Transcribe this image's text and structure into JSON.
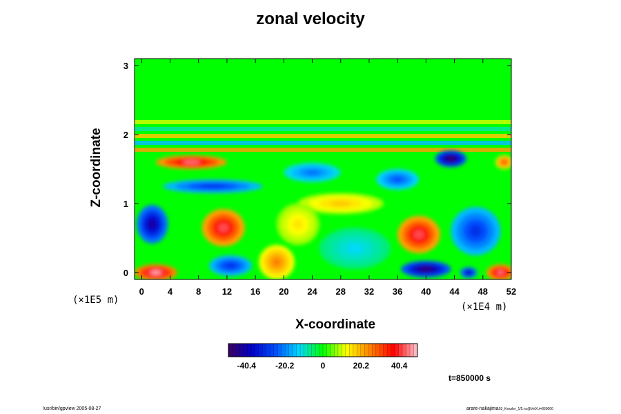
{
  "footer": {
    "left": "/usr/bin/gpview 2005-08-27",
    "right_user": "arare-nakajima",
    "right_file": "03_Kessler_1/5.nc@VelX,t=850000"
  },
  "time_label": "t=850000 s",
  "chart_data": {
    "type": "heatmap",
    "title": "zonal velocity",
    "xlabel": "X-coordinate",
    "ylabel": "Z-coordinate",
    "x_unit": "(×1E4 m)",
    "z_unit": "(×1E5 m)",
    "x_ticks": [
      "0",
      "4",
      "8",
      "12",
      "16",
      "20",
      "24",
      "28",
      "32",
      "36",
      "40",
      "44",
      "48",
      "52"
    ],
    "z_ticks": [
      "0",
      "1",
      "2",
      "3"
    ],
    "xlim": [
      -1,
      52
    ],
    "zlim": [
      -0.1,
      3.1
    ],
    "colorbar_ticks": [
      "-40.4",
      "-20.2",
      "0",
      "20.2",
      "40.4"
    ],
    "colorbar_range": [
      -50,
      50
    ],
    "grid": false,
    "features": [
      {
        "x": 11.5,
        "z": 0.65,
        "value": 42,
        "sx": 3.0,
        "sz": 0.27
      },
      {
        "x": 39,
        "z": 0.55,
        "value": 42,
        "sx": 3.0,
        "sz": 0.27
      },
      {
        "x": 7,
        "z": 1.6,
        "value": 45,
        "sx": 5.0,
        "sz": 0.1
      },
      {
        "x": 2,
        "z": 0.0,
        "value": 48,
        "sx": 3.0,
        "sz": 0.12
      },
      {
        "x": 50.5,
        "z": 0.0,
        "value": 45,
        "sx": 2.0,
        "sz": 0.12
      },
      {
        "x": 19,
        "z": 0.15,
        "value": 25,
        "sx": 2.5,
        "sz": 0.25
      },
      {
        "x": 1.5,
        "z": 0.7,
        "value": -42,
        "sx": 2.2,
        "sz": 0.28
      },
      {
        "x": 12.5,
        "z": 0.1,
        "value": -30,
        "sx": 3.0,
        "sz": 0.15
      },
      {
        "x": 40,
        "z": 0.05,
        "value": -48,
        "sx": 3.5,
        "sz": 0.12
      },
      {
        "x": 46,
        "z": 0.0,
        "value": -40,
        "sx": 1.2,
        "sz": 0.08
      },
      {
        "x": 43.5,
        "z": 1.65,
        "value": -50,
        "sx": 2.2,
        "sz": 0.12
      },
      {
        "x": 10,
        "z": 1.25,
        "value": -30,
        "sx": 7.0,
        "sz": 0.1
      },
      {
        "x": 24,
        "z": 1.45,
        "value": -22,
        "sx": 4.0,
        "sz": 0.14
      },
      {
        "x": 47,
        "z": 0.6,
        "value": -30,
        "sx": 3.5,
        "sz": 0.35
      },
      {
        "x": 28,
        "z": 1.0,
        "value": 18,
        "sx": 6.0,
        "sz": 0.15
      },
      {
        "x": 36,
        "z": 1.35,
        "value": -25,
        "sx": 3.0,
        "sz": 0.15
      },
      {
        "x": 30,
        "z": 0.35,
        "value": -12,
        "sx": 5.0,
        "sz": 0.3
      },
      {
        "x": 51,
        "z": 1.6,
        "value": 30,
        "sx": 1.2,
        "sz": 0.1
      },
      {
        "x": 22,
        "z": 0.7,
        "value": 15,
        "sx": 3.0,
        "sz": 0.3
      }
    ],
    "stripes": [
      {
        "z": 1.78,
        "value": 22
      },
      {
        "z": 1.88,
        "value": -15
      },
      {
        "z": 1.98,
        "value": 18
      },
      {
        "z": 2.08,
        "value": -8
      },
      {
        "z": 2.18,
        "value": 10
      }
    ],
    "colors": {
      "background_value": 0,
      "palette": [
        "#3a0060",
        "#0000c8",
        "#0050ff",
        "#00d8ff",
        "#00ff00",
        "#ffff00",
        "#ff8000",
        "#ff0000",
        "#ffc8d0"
      ]
    }
  }
}
